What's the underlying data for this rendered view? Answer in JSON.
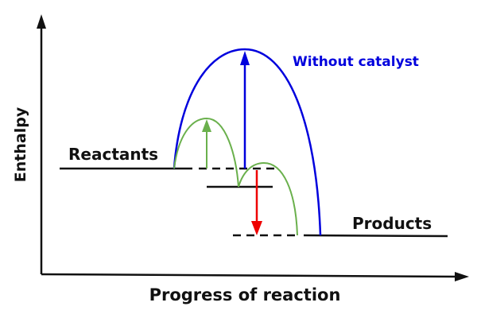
{
  "axes": {
    "y_label": "Enthalpy",
    "x_label": "Progress of reaction"
  },
  "labels": {
    "reactants": "Reactants",
    "products": "Products",
    "without_catalyst": "Without catalyst"
  },
  "colors": {
    "without_catalyst": "#0000dd",
    "with_catalyst": "#6ab04c",
    "enthalpy_change": "#ee0000",
    "axes": "#111111"
  }
}
